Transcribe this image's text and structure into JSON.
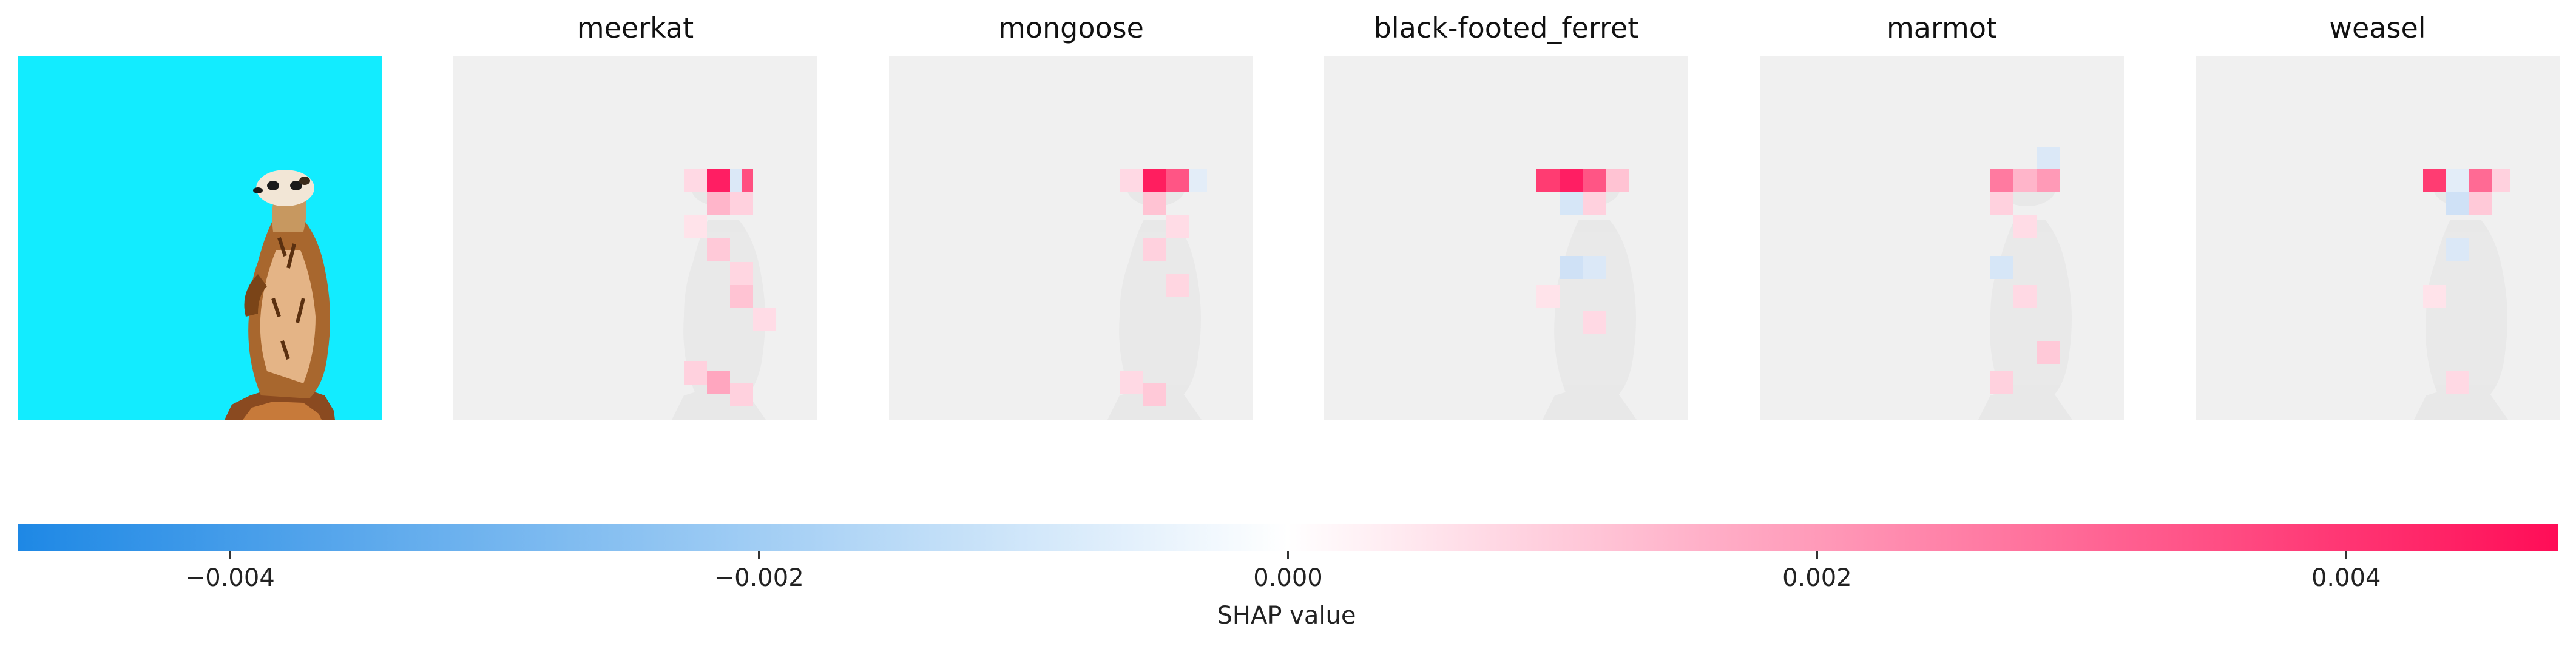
{
  "chart_data": {
    "type": "heatmap",
    "subtype": "shap-image-explanation",
    "original_image": "meerkat standing upright on a rock against a cyan background",
    "panels": [
      {
        "title": "meerkat",
        "peak_value": 0.0047
      },
      {
        "title": "mongoose",
        "peak_value": 0.0046
      },
      {
        "title": "black-footed_ferret",
        "peak_value": 0.0043
      },
      {
        "title": "marmot",
        "peak_value": 0.0022
      },
      {
        "title": "weasel",
        "peak_value": 0.0026
      }
    ],
    "colorbar": {
      "label": "SHAP value",
      "range": [
        -0.0048,
        0.0048
      ],
      "ticks": [
        {
          "value": -0.004,
          "label": "−0.004"
        },
        {
          "value": -0.002,
          "label": "−0.002"
        },
        {
          "value": 0.0,
          "label": "0.000"
        },
        {
          "value": 0.002,
          "label": "0.002"
        },
        {
          "value": 0.004,
          "label": "0.004"
        }
      ],
      "colors": {
        "negative": "#1e88e5",
        "zero": "#ffffff",
        "positive": "#ff0d57"
      }
    },
    "grid": false,
    "legend_position": "bottom"
  }
}
